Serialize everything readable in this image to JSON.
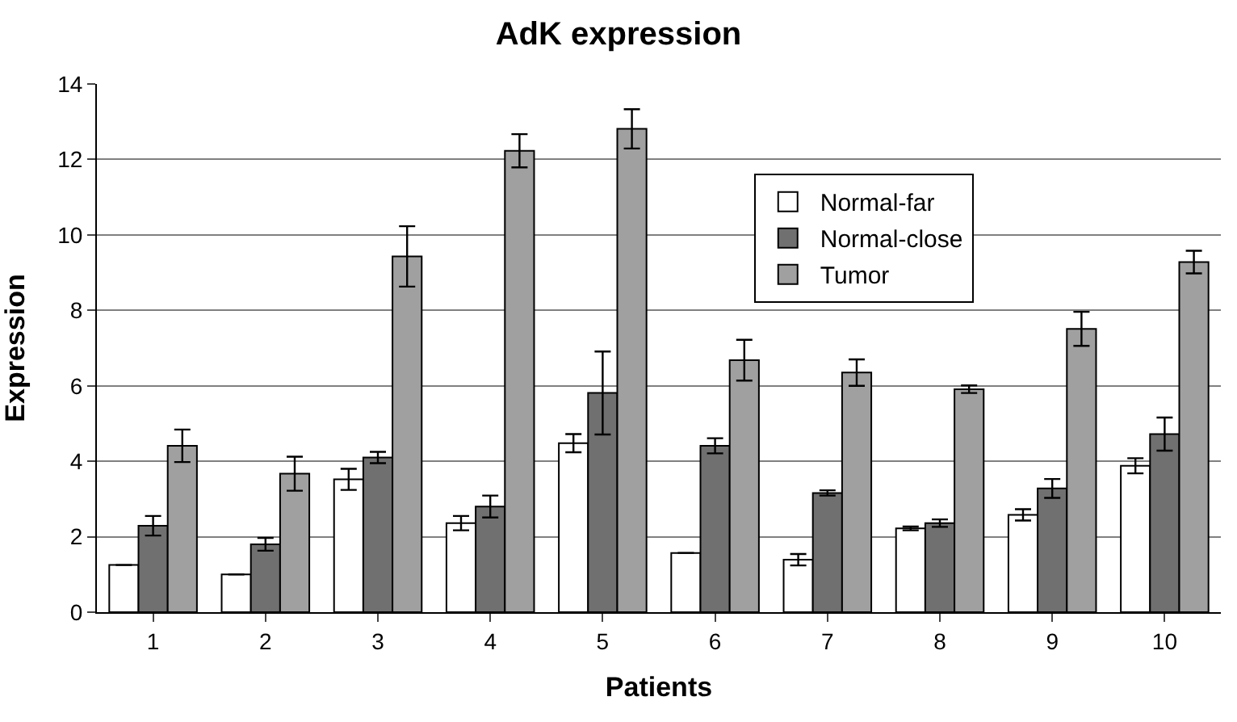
{
  "chart_data": {
    "type": "bar",
    "title": "AdK expression",
    "xlabel": "Patients",
    "ylabel": "Expression",
    "categories": [
      "1",
      "2",
      "3",
      "4",
      "5",
      "6",
      "7",
      "8",
      "9",
      "10"
    ],
    "series": [
      {
        "name": "Normal-far",
        "color": "#ffffff",
        "values": [
          1.25,
          1.0,
          3.52,
          2.36,
          4.48,
          1.57,
          1.39,
          2.22,
          2.58,
          3.88
        ],
        "errors": [
          null,
          null,
          0.28,
          0.19,
          0.24,
          null,
          0.15,
          0.05,
          0.15,
          0.2
        ]
      },
      {
        "name": "Normal-close",
        "color": "#707070",
        "values": [
          2.29,
          1.8,
          4.1,
          2.8,
          5.81,
          4.41,
          3.16,
          2.36,
          3.28,
          4.72
        ],
        "errors": [
          0.26,
          0.17,
          0.15,
          0.29,
          1.1,
          0.2,
          0.07,
          0.1,
          0.25,
          0.44
        ]
      },
      {
        "name": "Tumor",
        "color": "#a0a0a0",
        "values": [
          4.41,
          3.67,
          9.43,
          12.23,
          12.81,
          6.68,
          6.35,
          5.91,
          7.51,
          9.28
        ],
        "errors": [
          0.43,
          0.45,
          0.8,
          0.44,
          0.52,
          0.54,
          0.35,
          0.1,
          0.45,
          0.3
        ]
      }
    ],
    "ylim": [
      0,
      14
    ],
    "yticks": [
      0,
      2,
      4,
      6,
      8,
      10,
      12,
      14
    ],
    "grid": "y",
    "legend": "top right"
  }
}
